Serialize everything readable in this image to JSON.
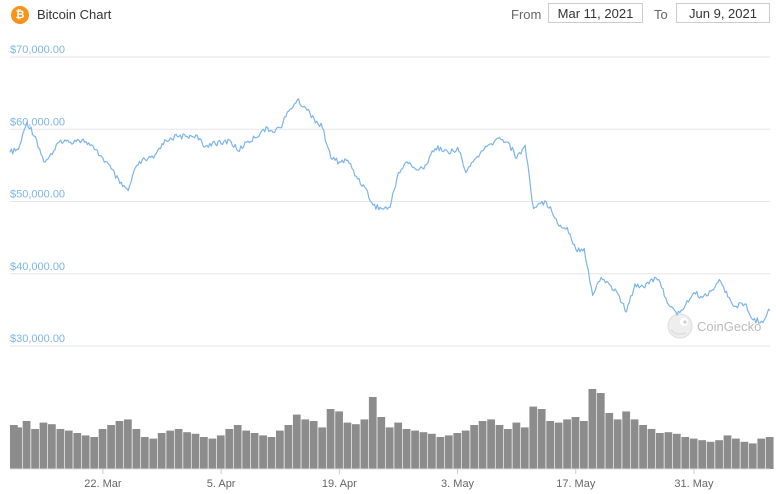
{
  "header": {
    "title": "Bitcoin Chart",
    "icon": "bitcoin-icon",
    "icon_glyph": "₿",
    "from_label": "From",
    "from_value": "Mar 11, 2021",
    "to_label": "To",
    "to_value": "Jun 9, 2021"
  },
  "watermark": {
    "text": "CoinGecko",
    "icon": "coingecko-gecko-icon"
  },
  "colors": {
    "price_line": "#7cb5ec",
    "volume_bars": "#8c8c8c",
    "grid": "#e6e6e6",
    "y_labels": "#7cb5ec"
  },
  "chart_data": {
    "type": "line",
    "title": "Bitcoin Chart",
    "x_range": [
      "2021-03-11",
      "2021-06-09"
    ],
    "ylim": [
      30000,
      70000
    ],
    "y_ticks": [
      30000,
      40000,
      50000,
      60000,
      70000
    ],
    "y_tick_labels": [
      "$30,000.00",
      "$40,000.00",
      "$50,000.00",
      "$60,000.00",
      "$70,000.00"
    ],
    "x_ticks": [
      {
        "date": "2021-03-22",
        "label": "22. Mar"
      },
      {
        "date": "2021-04-05",
        "label": "5. Apr"
      },
      {
        "date": "2021-04-19",
        "label": "19. Apr"
      },
      {
        "date": "2021-05-03",
        "label": "3. May"
      },
      {
        "date": "2021-05-17",
        "label": "17. May"
      },
      {
        "date": "2021-05-31",
        "label": "31. May"
      }
    ],
    "grid": true,
    "legend": "none",
    "series": [
      {
        "kind": "price",
        "x": [
          "2021-03-11",
          "2021-03-12",
          "2021-03-13",
          "2021-03-14",
          "2021-03-15",
          "2021-03-16",
          "2021-03-17",
          "2021-03-18",
          "2021-03-19",
          "2021-03-20",
          "2021-03-21",
          "2021-03-22",
          "2021-03-23",
          "2021-03-24",
          "2021-03-25",
          "2021-03-26",
          "2021-03-27",
          "2021-03-28",
          "2021-03-29",
          "2021-03-30",
          "2021-03-31",
          "2021-04-01",
          "2021-04-02",
          "2021-04-03",
          "2021-04-04",
          "2021-04-05",
          "2021-04-06",
          "2021-04-07",
          "2021-04-08",
          "2021-04-09",
          "2021-04-10",
          "2021-04-11",
          "2021-04-12",
          "2021-04-13",
          "2021-04-14",
          "2021-04-15",
          "2021-04-16",
          "2021-04-17",
          "2021-04-18",
          "2021-04-19",
          "2021-04-20",
          "2021-04-21",
          "2021-04-22",
          "2021-04-23",
          "2021-04-24",
          "2021-04-25",
          "2021-04-26",
          "2021-04-27",
          "2021-04-28",
          "2021-04-29",
          "2021-04-30",
          "2021-05-01",
          "2021-05-02",
          "2021-05-03",
          "2021-05-04",
          "2021-05-05",
          "2021-05-06",
          "2021-05-07",
          "2021-05-08",
          "2021-05-09",
          "2021-05-10",
          "2021-05-11",
          "2021-05-12",
          "2021-05-13",
          "2021-05-14",
          "2021-05-15",
          "2021-05-16",
          "2021-05-17",
          "2021-05-18",
          "2021-05-19",
          "2021-05-20",
          "2021-05-21",
          "2021-05-22",
          "2021-05-23",
          "2021-05-24",
          "2021-05-25",
          "2021-05-26",
          "2021-05-27",
          "2021-05-28",
          "2021-05-29",
          "2021-05-30",
          "2021-05-31",
          "2021-06-01",
          "2021-06-02",
          "2021-06-03",
          "2021-06-04",
          "2021-06-05",
          "2021-06-06",
          "2021-06-07",
          "2021-06-08",
          "2021-06-09"
        ],
        "values": [
          56800,
          57200,
          61000,
          59000,
          55500,
          56500,
          58500,
          58200,
          58600,
          58300,
          57200,
          56000,
          54500,
          52500,
          51500,
          55000,
          55800,
          56000,
          58000,
          58800,
          59000,
          59000,
          59200,
          57500,
          58200,
          58000,
          58500,
          57000,
          58200,
          58800,
          60000,
          59800,
          60200,
          62500,
          64000,
          63000,
          61500,
          60200,
          56000,
          55500,
          55700,
          53500,
          52000,
          49500,
          49000,
          49200,
          54000,
          55500,
          54500,
          54500,
          57000,
          57500,
          56600,
          57500,
          54000,
          55800,
          57000,
          58000,
          58800,
          58200,
          56000,
          57800,
          49000,
          50000,
          49300,
          46600,
          46400,
          43400,
          43500,
          37000,
          39500,
          38500,
          37200,
          34700,
          38600,
          38200,
          39300,
          38800,
          35700,
          34300,
          35700,
          37400,
          36700,
          37600,
          39200,
          36800,
          35500,
          35800,
          33600,
          33400,
          35000
        ]
      },
      {
        "kind": "volume",
        "x": [
          "2021-03-11",
          "2021-03-12",
          "2021-03-13",
          "2021-03-14",
          "2021-03-15",
          "2021-03-16",
          "2021-03-17",
          "2021-03-18",
          "2021-03-19",
          "2021-03-20",
          "2021-03-21",
          "2021-03-22",
          "2021-03-23",
          "2021-03-24",
          "2021-03-25",
          "2021-03-26",
          "2021-03-27",
          "2021-03-28",
          "2021-03-29",
          "2021-03-30",
          "2021-03-31",
          "2021-04-01",
          "2021-04-02",
          "2021-04-03",
          "2021-04-04",
          "2021-04-05",
          "2021-04-06",
          "2021-04-07",
          "2021-04-08",
          "2021-04-09",
          "2021-04-10",
          "2021-04-11",
          "2021-04-12",
          "2021-04-13",
          "2021-04-14",
          "2021-04-15",
          "2021-04-16",
          "2021-04-17",
          "2021-04-18",
          "2021-04-19",
          "2021-04-20",
          "2021-04-21",
          "2021-04-22",
          "2021-04-23",
          "2021-04-24",
          "2021-04-25",
          "2021-04-26",
          "2021-04-27",
          "2021-04-28",
          "2021-04-29",
          "2021-04-30",
          "2021-05-01",
          "2021-05-02",
          "2021-05-03",
          "2021-05-04",
          "2021-05-05",
          "2021-05-06",
          "2021-05-07",
          "2021-05-08",
          "2021-05-09",
          "2021-05-10",
          "2021-05-11",
          "2021-05-12",
          "2021-05-13",
          "2021-05-14",
          "2021-05-15",
          "2021-05-16",
          "2021-05-17",
          "2021-05-18",
          "2021-05-19",
          "2021-05-20",
          "2021-05-21",
          "2021-05-22",
          "2021-05-23",
          "2021-05-24",
          "2021-05-25",
          "2021-05-26",
          "2021-05-27",
          "2021-05-28",
          "2021-05-29",
          "2021-05-30",
          "2021-05-31",
          "2021-06-01",
          "2021-06-02",
          "2021-06-03",
          "2021-06-04",
          "2021-06-05",
          "2021-06-06",
          "2021-06-07",
          "2021-06-08",
          "2021-06-09"
        ],
        "values": [
          0.55,
          0.52,
          0.6,
          0.5,
          0.58,
          0.56,
          0.5,
          0.48,
          0.45,
          0.42,
          0.4,
          0.5,
          0.55,
          0.6,
          0.62,
          0.5,
          0.4,
          0.38,
          0.45,
          0.48,
          0.5,
          0.46,
          0.44,
          0.4,
          0.38,
          0.42,
          0.5,
          0.55,
          0.48,
          0.45,
          0.42,
          0.4,
          0.48,
          0.55,
          0.68,
          0.62,
          0.6,
          0.52,
          0.75,
          0.72,
          0.58,
          0.56,
          0.62,
          0.9,
          0.65,
          0.52,
          0.58,
          0.5,
          0.48,
          0.46,
          0.44,
          0.4,
          0.42,
          0.45,
          0.48,
          0.55,
          0.6,
          0.62,
          0.55,
          0.5,
          0.58,
          0.52,
          0.78,
          0.75,
          0.6,
          0.58,
          0.62,
          0.65,
          0.6,
          1.0,
          0.95,
          0.7,
          0.62,
          0.72,
          0.62,
          0.55,
          0.5,
          0.45,
          0.46,
          0.44,
          0.4,
          0.38,
          0.36,
          0.34,
          0.36,
          0.42,
          0.38,
          0.34,
          0.32,
          0.38,
          0.4
        ]
      }
    ]
  }
}
